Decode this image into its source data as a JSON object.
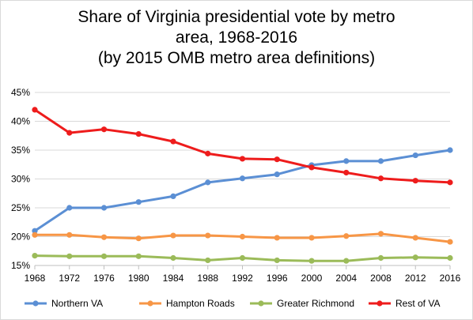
{
  "chart_data": {
    "type": "line",
    "title_lines": [
      "Share of Virginia presidential vote by metro",
      "area, 1968-2016",
      "(by 2015 OMB metro area definitions)"
    ],
    "x": [
      "1968",
      "1972",
      "1976",
      "1980",
      "1984",
      "1988",
      "1992",
      "1996",
      "2000",
      "2004",
      "2008",
      "2012",
      "2016"
    ],
    "y_ticks": [
      "15%",
      "20%",
      "25%",
      "30%",
      "35%",
      "40%",
      "45%"
    ],
    "ylim": [
      15,
      45
    ],
    "grid": "horizontal",
    "legend_position": "bottom",
    "series": [
      {
        "name": "Northern VA",
        "color": "#5b8fd4",
        "values": [
          21.0,
          25.0,
          25.0,
          26.0,
          27.0,
          29.4,
          30.1,
          30.8,
          32.4,
          33.1,
          33.1,
          34.1,
          35.0
        ]
      },
      {
        "name": "Hampton Roads",
        "color": "#f79646",
        "values": [
          20.3,
          20.3,
          19.9,
          19.7,
          20.2,
          20.2,
          20.0,
          19.8,
          19.8,
          20.1,
          20.5,
          19.8,
          19.1
        ]
      },
      {
        "name": "Greater Richmond",
        "color": "#9bbb59",
        "values": [
          16.7,
          16.6,
          16.6,
          16.6,
          16.3,
          15.9,
          16.3,
          15.9,
          15.8,
          15.8,
          16.3,
          16.4,
          16.3
        ]
      },
      {
        "name": "Rest of VA",
        "color": "#ee1c1c",
        "values": [
          42.0,
          38.0,
          38.6,
          37.8,
          36.5,
          34.4,
          33.5,
          33.4,
          32.0,
          31.1,
          30.1,
          29.7,
          29.4
        ]
      }
    ]
  }
}
